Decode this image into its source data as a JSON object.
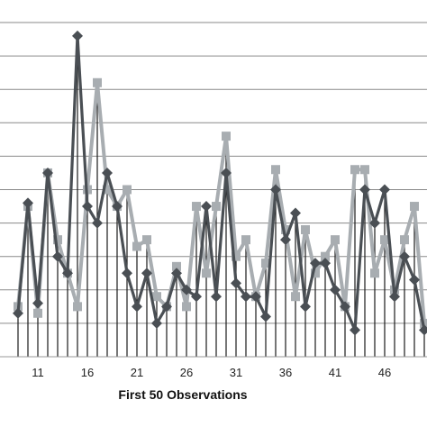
{
  "chart_data": {
    "type": "line",
    "title": "",
    "xlabel": "First 50 Observations",
    "ylabel": "",
    "x_start": 9,
    "x_end": 50,
    "xlim": [
      9,
      50
    ],
    "ylim": [
      0,
      10
    ],
    "grid": true,
    "legend": "none",
    "x_tick_labels": [
      "11",
      "16",
      "21",
      "26",
      "31",
      "36",
      "41",
      "46"
    ],
    "x_tick_values": [
      11,
      16,
      21,
      26,
      31,
      36,
      41,
      46
    ],
    "drop_lines": true,
    "series": [
      {
        "color": "#4a4f54",
        "marker": "diamond",
        "values": [
          1.3,
          4.6,
          1.6,
          5.5,
          3.0,
          2.5,
          9.6,
          4.5,
          4.0,
          5.5,
          4.5,
          2.5,
          1.5,
          2.5,
          1.0,
          1.5,
          2.5,
          2.0,
          1.8,
          4.5,
          1.8,
          5.5,
          2.2,
          1.8,
          1.8,
          1.2,
          5.0,
          3.5,
          4.3,
          1.5,
          2.8,
          2.8,
          2.0,
          1.5,
          0.8,
          5.0,
          4.0,
          5.0,
          1.8,
          3.0,
          2.3,
          0.8
        ]
      },
      {
        "color": "#a8adb1",
        "marker": "square",
        "values": [
          1.5,
          4.5,
          1.3,
          5.5,
          3.5,
          2.5,
          1.5,
          5.0,
          8.2,
          5.0,
          4.5,
          5.0,
          3.3,
          3.5,
          1.8,
          1.5,
          2.7,
          1.5,
          4.5,
          2.5,
          4.5,
          6.6,
          3.0,
          3.5,
          1.8,
          2.8,
          5.6,
          3.8,
          1.8,
          3.8,
          2.5,
          3.0,
          3.5,
          1.5,
          5.6,
          5.6,
          2.5,
          3.5,
          2.0,
          3.5,
          4.5,
          1.0
        ]
      }
    ]
  }
}
